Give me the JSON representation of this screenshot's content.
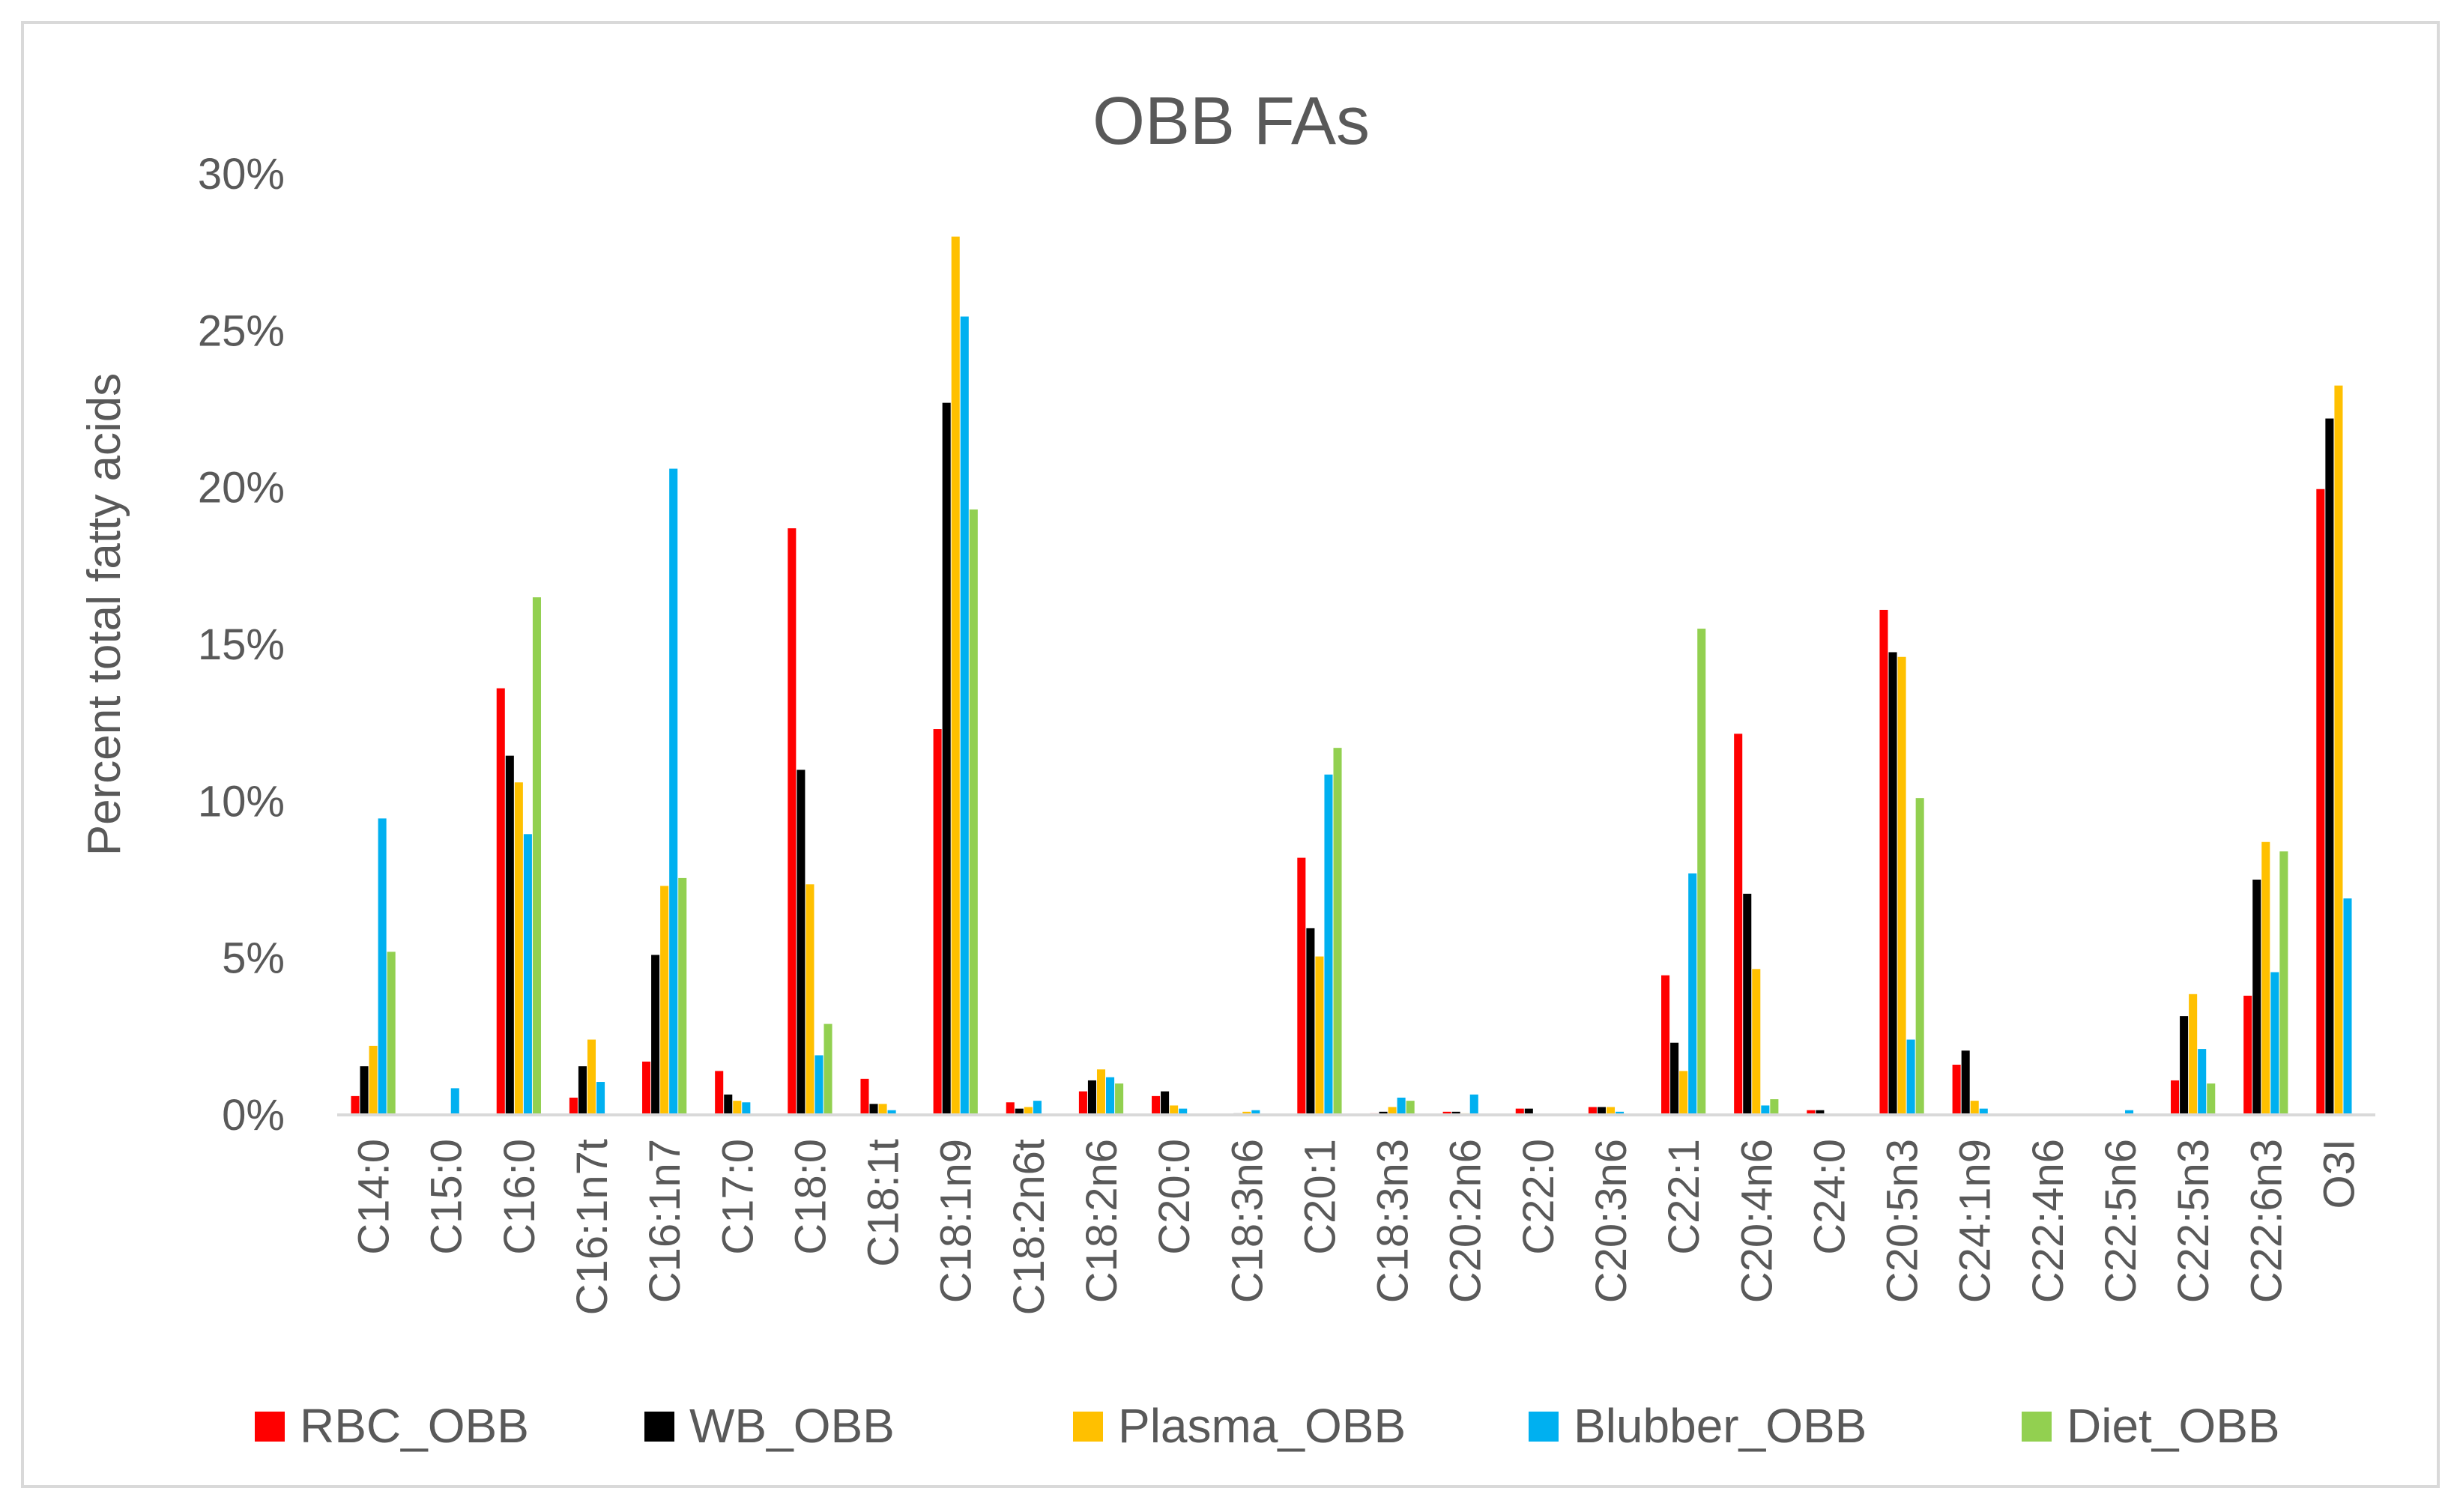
{
  "chart_data": {
    "type": "bar",
    "title": "OBB FAs",
    "xlabel": "",
    "ylabel": "Percent total fatty acids",
    "ylim": [
      0,
      30
    ],
    "yticks": [
      "0%",
      "5%",
      "10%",
      "15%",
      "20%",
      "25%",
      "30%"
    ],
    "grid": false,
    "legend_position": "bottom",
    "categories": [
      "C14:0",
      "C15:0",
      "C16:0",
      "C16:1n7t",
      "C16:1n7",
      "C17:0",
      "C18:0",
      "C18:1t",
      "C18:1n9",
      "C18:2n6t",
      "C18:2n6",
      "C20:0",
      "C18:3n6",
      "C20:1",
      "C18:3n3",
      "C20:2n6",
      "C22:0",
      "C20:3n6",
      "C22:1",
      "C20:4n6",
      "C24:0",
      "C20:5n3",
      "C24:1n9",
      "C22:4n6",
      "C22:5n6",
      "C22:5n3",
      "C22:6n3",
      "O3I"
    ],
    "series": [
      {
        "name": "RBC_OBB",
        "color": "#ff0000",
        "values": [
          0.6,
          0,
          13.6,
          0.55,
          1.7,
          1.4,
          18.7,
          1.15,
          12.3,
          0.4,
          0.75,
          0.6,
          0,
          8.2,
          0.05,
          0.1,
          0.2,
          0.25,
          4.45,
          12.15,
          0.15,
          16.1,
          1.6,
          0,
          0,
          1.1,
          3.8,
          19.95
        ]
      },
      {
        "name": "WB_OBB",
        "color": "#000000",
        "values": [
          1.55,
          0,
          11.45,
          1.55,
          5.1,
          0.65,
          11.0,
          0.35,
          22.7,
          0.2,
          1.1,
          0.75,
          0.05,
          5.95,
          0.1,
          0.1,
          0.2,
          0.25,
          2.3,
          7.05,
          0.15,
          14.75,
          2.05,
          0,
          0,
          3.15,
          7.5,
          22.2
        ]
      },
      {
        "name": "Plasma_OBB",
        "color": "#ffc000",
        "values": [
          2.2,
          0,
          10.6,
          2.4,
          7.3,
          0.45,
          7.35,
          0.35,
          28.0,
          0.25,
          1.45,
          0.3,
          0.1,
          5.05,
          0.25,
          0.05,
          0,
          0.25,
          1.4,
          4.65,
          0,
          14.6,
          0.45,
          0,
          0,
          3.85,
          8.7,
          23.25
        ]
      },
      {
        "name": "Blubber_OBB",
        "color": "#00b0f0",
        "values": [
          9.45,
          0.85,
          8.95,
          1.05,
          20.6,
          0.4,
          1.9,
          0.15,
          25.45,
          0.45,
          1.2,
          0.2,
          0.15,
          10.85,
          0.55,
          0.65,
          0,
          0.1,
          7.7,
          0.3,
          0,
          2.4,
          0.2,
          0,
          0.15,
          2.1,
          4.55,
          6.9
        ]
      },
      {
        "name": "Diet_OBB",
        "color": "#92d050",
        "values": [
          5.2,
          0,
          16.5,
          0,
          7.55,
          0,
          2.9,
          0,
          19.3,
          0,
          1.0,
          0,
          0,
          11.7,
          0.45,
          0,
          0,
          0,
          15.5,
          0.5,
          0,
          10.1,
          0,
          0,
          0,
          1.0,
          8.4,
          0
        ]
      }
    ]
  }
}
